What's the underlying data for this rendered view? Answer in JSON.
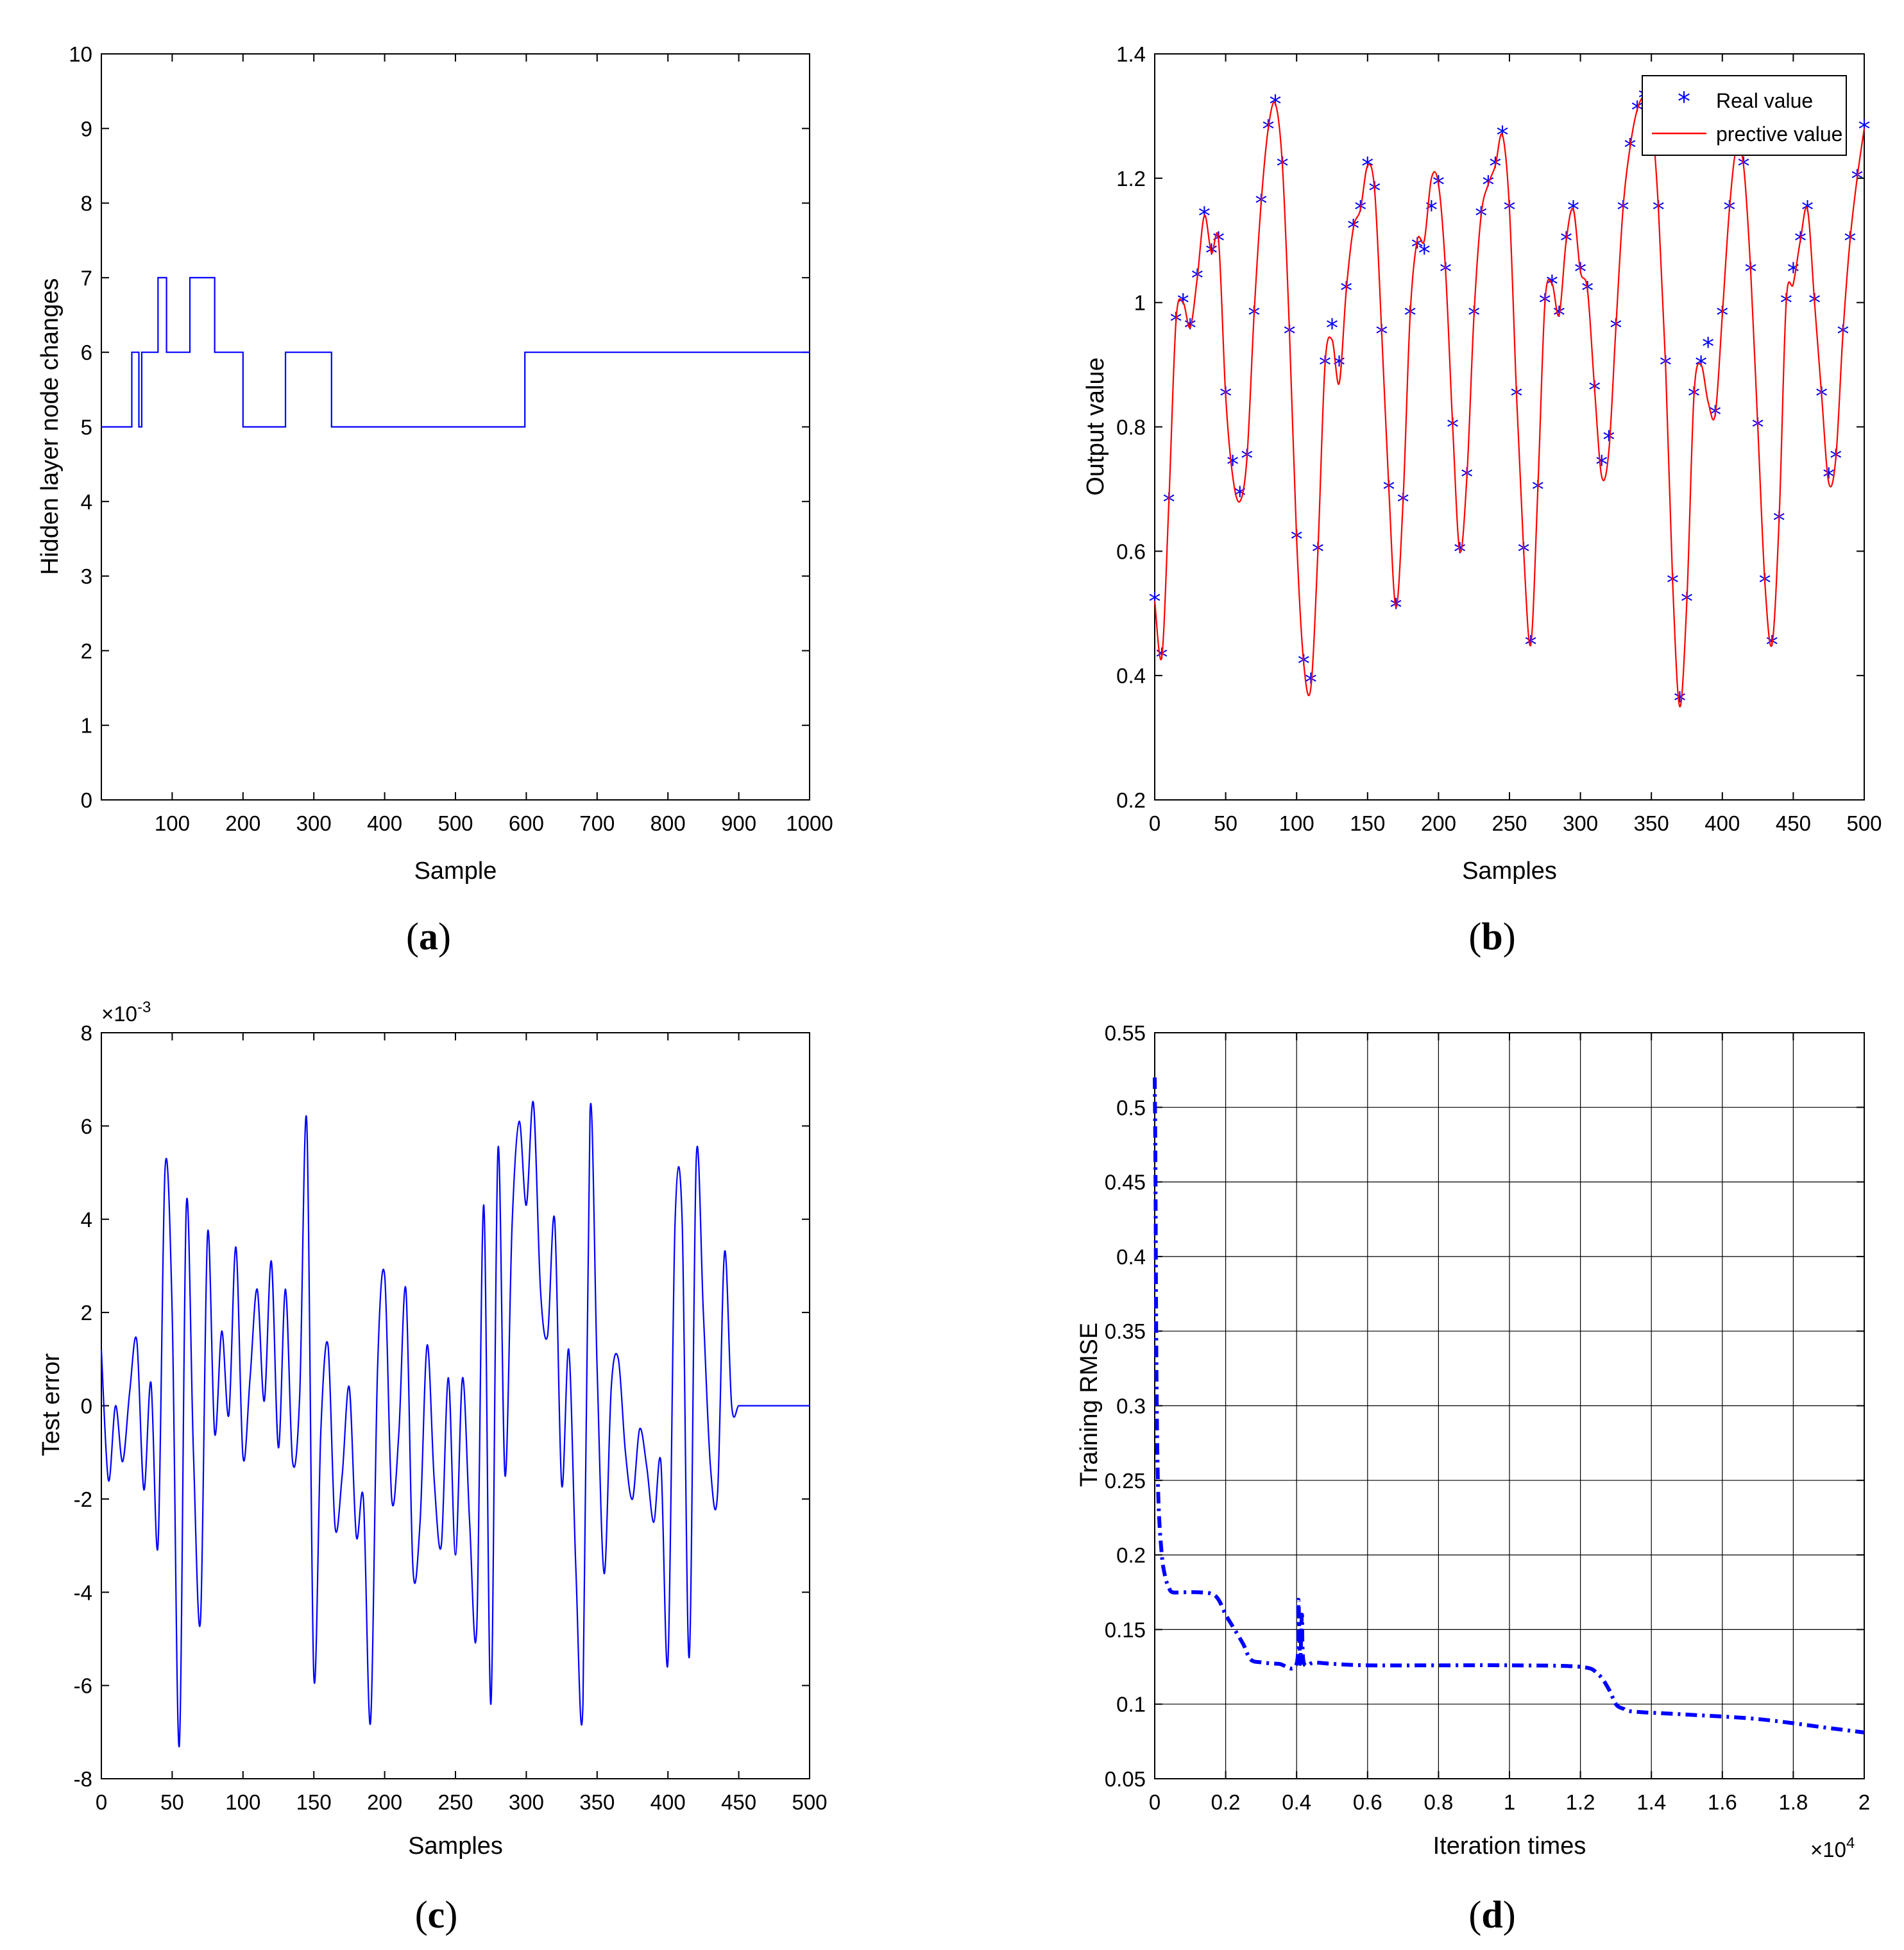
{
  "colors": {
    "blue": "#0000ff",
    "red": "#ff0000",
    "grid": "#000000",
    "axis": "#000000"
  },
  "chart_data": [
    {
      "id": "a",
      "type": "line",
      "panel_label": "a",
      "xlabel": "Sample",
      "ylabel": "Hidden layer node changes",
      "xlim": [
        0,
        1000
      ],
      "ylim": [
        0,
        10
      ],
      "xticks": [
        100,
        200,
        300,
        400,
        500,
        600,
        700,
        800,
        900,
        1000
      ],
      "yticks": [
        0,
        1,
        2,
        3,
        4,
        5,
        6,
        7,
        8,
        9,
        10
      ],
      "grid": false,
      "series": [
        {
          "name": "Hidden layer nodes",
          "step": true,
          "x": [
            0,
            43,
            47,
            53,
            57,
            80,
            85,
            92,
            125,
            138,
            145,
            160,
            200,
            205,
            225,
            260,
            265,
            325,
            330,
            525,
            598,
            1000
          ],
          "y": [
            5,
            6,
            6,
            5,
            6,
            7,
            7,
            6,
            7,
            7,
            7,
            6,
            5,
            5,
            5,
            6,
            6,
            5,
            5,
            5,
            6,
            6
          ]
        }
      ]
    },
    {
      "id": "b",
      "type": "line",
      "panel_label": "b",
      "xlabel": "Samples",
      "ylabel": "Output value",
      "xlim": [
        0,
        500
      ],
      "ylim": [
        0.2,
        1.4
      ],
      "xticks": [
        0,
        50,
        100,
        150,
        200,
        250,
        300,
        350,
        400,
        450,
        500
      ],
      "yticks": [
        0.2,
        0.4,
        0.6,
        0.8,
        1,
        1.2,
        1.4
      ],
      "ytick_labels": [
        "0.2",
        "0.4",
        "0.6",
        "0.8",
        "1",
        "1.2",
        "1.4"
      ],
      "grid": false,
      "legend_position": "top-right",
      "legend": [
        "Real value",
        "prective value"
      ],
      "series": [
        {
          "name": "Real value",
          "marker": "*",
          "x": [
            0,
            5,
            10,
            15,
            20,
            25,
            30,
            35,
            40,
            45,
            50,
            55,
            60,
            65,
            70,
            75,
            80,
            85,
            90,
            95,
            100,
            105,
            110,
            115,
            120,
            125,
            130,
            135,
            140,
            145,
            150,
            155,
            160,
            165,
            170,
            175,
            180,
            185,
            190,
            195,
            200,
            205,
            210,
            215,
            220,
            225,
            230,
            235,
            240,
            245,
            250,
            255,
            260,
            265,
            270,
            275,
            280,
            285,
            290,
            295,
            300,
            305,
            310,
            315,
            320,
            325,
            330,
            335,
            340,
            345,
            350,
            355,
            360,
            365,
            370,
            375,
            380,
            385,
            390,
            395,
            400,
            405,
            410,
            415,
            420,
            425,
            430,
            435,
            440,
            445,
            450,
            455,
            460,
            465,
            470,
            475,
            480,
            485,
            490,
            495,
            500
          ],
          "values": [
            0.52,
            0.43,
            0.68,
            0.97,
            1.0,
            0.96,
            1.04,
            1.14,
            1.08,
            1.1,
            0.85,
            0.74,
            0.69,
            0.75,
            0.98,
            1.16,
            1.28,
            1.32,
            1.22,
            0.95,
            0.62,
            0.42,
            0.39,
            0.6,
            0.9,
            0.96,
            0.9,
            1.02,
            1.12,
            1.15,
            1.22,
            1.18,
            0.95,
            0.7,
            0.51,
            0.68,
            0.98,
            1.09,
            1.08,
            1.15,
            1.19,
            1.05,
            0.8,
            0.6,
            0.72,
            0.98,
            1.14,
            1.19,
            1.22,
            1.27,
            1.15,
            0.85,
            0.6,
            0.45,
            0.7,
            1.0,
            1.03,
            0.98,
            1.1,
            1.15,
            1.05,
            1.02,
            0.86,
            0.74,
            0.78,
            0.96,
            1.15,
            1.25,
            1.31,
            1.33,
            1.3,
            1.15,
            0.9,
            0.55,
            0.36,
            0.52,
            0.85,
            0.9,
            0.93,
            0.82,
            0.98,
            1.15,
            1.25,
            1.22,
            1.05,
            0.8,
            0.55,
            0.45,
            0.65,
            1.0,
            1.05,
            1.1,
            1.15,
            1.0,
            0.85,
            0.72,
            0.75,
            0.95,
            1.1,
            1.2,
            1.28
          ]
        },
        {
          "name": "prective value",
          "x": [
            0,
            5,
            10,
            15,
            20,
            25,
            30,
            35,
            40,
            45,
            50,
            55,
            60,
            65,
            70,
            75,
            80,
            85,
            90,
            95,
            100,
            105,
            110,
            115,
            120,
            125,
            130,
            135,
            140,
            145,
            150,
            155,
            160,
            165,
            170,
            175,
            180,
            185,
            190,
            195,
            200,
            205,
            210,
            215,
            220,
            225,
            230,
            235,
            240,
            245,
            250,
            255,
            260,
            265,
            270,
            275,
            280,
            285,
            290,
            295,
            300,
            305,
            310,
            315,
            320,
            325,
            330,
            335,
            340,
            345,
            350,
            355,
            360,
            365,
            370,
            375,
            380,
            385,
            390,
            395,
            400,
            405,
            410,
            415,
            420,
            425,
            430,
            435,
            440,
            445,
            450,
            455,
            460,
            465,
            470,
            475,
            480,
            485,
            490,
            495,
            500
          ],
          "values": [
            0.52,
            0.43,
            0.68,
            0.97,
            1.0,
            0.96,
            1.04,
            1.14,
            1.08,
            1.1,
            0.85,
            0.72,
            0.68,
            0.75,
            0.98,
            1.16,
            1.28,
            1.32,
            1.22,
            0.95,
            0.62,
            0.42,
            0.38,
            0.6,
            0.9,
            0.94,
            0.87,
            1.02,
            1.12,
            1.15,
            1.22,
            1.18,
            0.95,
            0.7,
            0.51,
            0.68,
            0.98,
            1.1,
            1.1,
            1.2,
            1.19,
            1.05,
            0.8,
            0.6,
            0.72,
            0.98,
            1.14,
            1.19,
            1.22,
            1.27,
            1.15,
            0.85,
            0.6,
            0.45,
            0.7,
            1.0,
            1.03,
            0.98,
            1.1,
            1.15,
            1.05,
            1.02,
            0.86,
            0.72,
            0.76,
            0.96,
            1.15,
            1.25,
            1.31,
            1.33,
            1.3,
            1.15,
            0.9,
            0.55,
            0.35,
            0.52,
            0.85,
            0.9,
            0.84,
            0.82,
            0.98,
            1.15,
            1.25,
            1.22,
            1.05,
            0.8,
            0.55,
            0.45,
            0.65,
            1.0,
            1.03,
            1.1,
            1.15,
            1.0,
            0.85,
            0.71,
            0.75,
            0.95,
            1.1,
            1.2,
            1.28
          ]
        }
      ]
    },
    {
      "id": "c",
      "type": "line",
      "panel_label": "c",
      "xlabel": "Samples",
      "ylabel": "Test error",
      "exponent_label": "×10",
      "exponent_power": "-3",
      "xlim": [
        0,
        500
      ],
      "ylim": [
        -8,
        8
      ],
      "xticks": [
        0,
        50,
        100,
        150,
        200,
        250,
        300,
        350,
        400,
        450,
        500
      ],
      "yticks": [
        -8,
        -6,
        -4,
        -2,
        0,
        2,
        4,
        6,
        8
      ],
      "grid": false,
      "series": [
        {
          "name": "Test error (×10^-3)",
          "x": [
            0,
            5,
            10,
            15,
            20,
            25,
            30,
            35,
            40,
            45,
            50,
            55,
            60,
            65,
            70,
            75,
            80,
            85,
            90,
            95,
            100,
            105,
            110,
            115,
            120,
            125,
            130,
            135,
            140,
            145,
            150,
            155,
            160,
            165,
            170,
            175,
            180,
            185,
            190,
            195,
            200,
            205,
            210,
            215,
            220,
            225,
            230,
            235,
            240,
            245,
            250,
            255,
            260,
            265,
            270,
            275,
            280,
            285,
            290,
            295,
            300,
            305,
            310,
            315,
            320,
            325,
            330,
            335,
            340,
            345,
            350,
            355,
            360,
            365,
            370,
            375,
            380,
            385,
            390,
            395,
            400,
            405,
            410,
            415,
            420,
            425,
            430,
            435,
            440,
            445,
            450,
            455,
            460,
            465,
            470,
            475,
            480,
            485,
            490,
            495,
            500
          ],
          "values": [
            1.2,
            -1.6,
            0.0,
            -1.2,
            0.3,
            1.4,
            -1.8,
            0.5,
            -3.0,
            5.1,
            2.0,
            -7.3,
            4.3,
            -1.0,
            -4.6,
            3.7,
            -0.6,
            1.6,
            -0.2,
            3.4,
            -1.1,
            0.6,
            2.5,
            0.1,
            3.1,
            -0.9,
            2.5,
            -1.2,
            0.2,
            6.1,
            -5.8,
            -0.5,
            1.3,
            -2.6,
            -1.5,
            0.4,
            -2.8,
            -2.0,
            -6.8,
            0.8,
            2.8,
            -2.0,
            -0.6,
            2.5,
            -3.5,
            -2.5,
            1.3,
            -1.6,
            -3.0,
            0.6,
            -3.2,
            0.6,
            -2.5,
            -4.8,
            4.3,
            -6.4,
            5.5,
            -1.5,
            3.9,
            6.1,
            4.3,
            6.5,
            2.5,
            1.5,
            4.0,
            -1.7,
            1.2,
            -3.5,
            -6.4,
            6.3,
            0.8,
            -3.6,
            0.4,
            1.0,
            -1.0,
            -2.0,
            -0.5,
            -1.3,
            -2.5,
            -1.2,
            -5.5,
            3.9,
            4.0,
            -5.4,
            5.3,
            2.0,
            -1.3,
            -1.9,
            3.3,
            0.0,
            0.0,
            0.0,
            0.0,
            0.0,
            0.0,
            0.0,
            0.0,
            0.0,
            0.0,
            0.0,
            0.0
          ]
        }
      ]
    },
    {
      "id": "d",
      "type": "line",
      "panel_label": "d",
      "xlabel": "Iteration times",
      "ylabel": "Training RMSE",
      "exponent_label": "×10",
      "exponent_power": "4",
      "xlim": [
        0,
        2
      ],
      "ylim": [
        0.05,
        0.55
      ],
      "xticks": [
        0,
        0.2,
        0.4,
        0.6,
        0.8,
        1,
        1.2,
        1.4,
        1.6,
        1.8,
        2
      ],
      "xtick_labels": [
        "0",
        "0.2",
        "0.4",
        "0.6",
        "0.8",
        "1",
        "1.2",
        "1.4",
        "1.6",
        "1.8",
        "2"
      ],
      "yticks": [
        0.05,
        0.1,
        0.15,
        0.2,
        0.25,
        0.3,
        0.35,
        0.4,
        0.45,
        0.5,
        0.55
      ],
      "ytick_labels": [
        "0.05",
        "0.1",
        "0.15",
        "0.2",
        "0.25",
        "0.3",
        "0.35",
        "0.4",
        "0.45",
        "0.5",
        "0.55"
      ],
      "grid": true,
      "series": [
        {
          "name": "Training RMSE",
          "style": "dash-dot",
          "x": [
            0,
            0.002,
            0.005,
            0.01,
            0.02,
            0.03,
            0.04,
            0.05,
            0.08,
            0.12,
            0.16,
            0.18,
            0.2,
            0.22,
            0.25,
            0.27,
            0.3,
            0.35,
            0.4,
            0.405,
            0.41,
            0.415,
            0.42,
            0.45,
            0.5,
            0.6,
            0.8,
            1.0,
            1.2,
            1.25,
            1.28,
            1.3,
            1.32,
            1.35,
            1.5,
            1.7,
            1.9,
            2.0
          ],
          "values": [
            0.52,
            0.46,
            0.32,
            0.24,
            0.2,
            0.185,
            0.178,
            0.175,
            0.175,
            0.175,
            0.174,
            0.17,
            0.16,
            0.152,
            0.14,
            0.13,
            0.128,
            0.127,
            0.127,
            0.17,
            0.127,
            0.16,
            0.128,
            0.128,
            0.127,
            0.126,
            0.126,
            0.126,
            0.125,
            0.12,
            0.11,
            0.1,
            0.097,
            0.095,
            0.093,
            0.09,
            0.084,
            0.081
          ]
        }
      ]
    }
  ]
}
